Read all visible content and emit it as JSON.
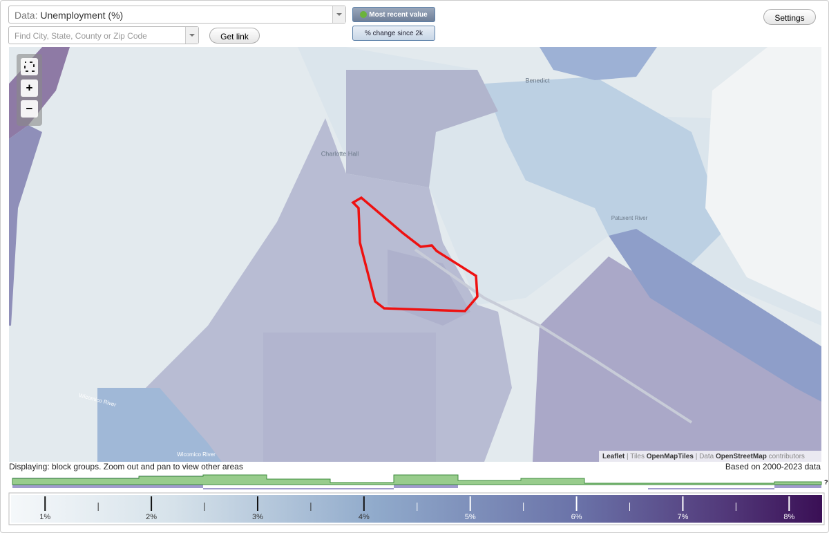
{
  "controls": {
    "data_label": "Data:",
    "data_value": "Unemployment (%)",
    "search_placeholder": "Find City, State, County or Zip Code",
    "get_link": "Get link",
    "most_recent": "Most recent value",
    "pct_change": "% change since 2k",
    "settings": "Settings"
  },
  "zoom": {
    "in": "+",
    "out": "−"
  },
  "map": {
    "labels": [
      "Benedict",
      "Charlotte Hall",
      "Patuxent River",
      "Wicomico River",
      "Wicomico River"
    ],
    "attribution": {
      "leaflet": "Leaflet",
      "tiles_prefix": "| Tiles",
      "tiles": "OpenMapTiles",
      "data_prefix": "| Data",
      "data": "OpenStreetMap",
      "suffix": "contributors"
    }
  },
  "status": {
    "left": "Displaying: block groups. Zoom out and pan to view other areas",
    "right": "Based on 2000-2023 data"
  },
  "legend": {
    "range": [
      0.68,
      8.31
    ],
    "ticks": [
      {
        "value": 1,
        "label": "1%"
      },
      {
        "value": 2,
        "label": "2%"
      },
      {
        "value": 3,
        "label": "3%"
      },
      {
        "value": 4,
        "label": "4%"
      },
      {
        "value": 5,
        "label": "5%"
      },
      {
        "value": 6,
        "label": "6%"
      },
      {
        "value": 7,
        "label": "7%"
      },
      {
        "value": 8,
        "label": "8%"
      }
    ],
    "minor_ticks": [
      1.5,
      2.5,
      3.5,
      4.5,
      5.5,
      6.5,
      7.5
    ],
    "help": "?"
  }
}
